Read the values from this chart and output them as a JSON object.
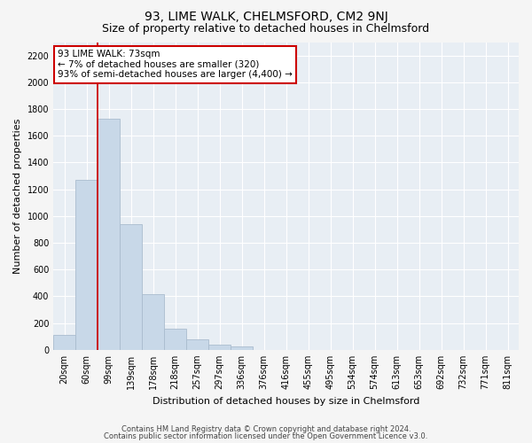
{
  "title": "93, LIME WALK, CHELMSFORD, CM2 9NJ",
  "subtitle": "Size of property relative to detached houses in Chelmsford",
  "xlabel": "Distribution of detached houses by size in Chelmsford",
  "ylabel": "Number of detached properties",
  "footnote1": "Contains HM Land Registry data © Crown copyright and database right 2024.",
  "footnote2": "Contains public sector information licensed under the Open Government Licence v3.0.",
  "bar_labels": [
    "20sqm",
    "60sqm",
    "99sqm",
    "139sqm",
    "178sqm",
    "218sqm",
    "257sqm",
    "297sqm",
    "336sqm",
    "376sqm",
    "416sqm",
    "455sqm",
    "495sqm",
    "534sqm",
    "574sqm",
    "613sqm",
    "653sqm",
    "692sqm",
    "732sqm",
    "771sqm",
    "811sqm"
  ],
  "bar_values": [
    110,
    1270,
    1730,
    940,
    415,
    155,
    75,
    38,
    25,
    0,
    0,
    0,
    0,
    0,
    0,
    0,
    0,
    0,
    0,
    0,
    0
  ],
  "bar_color": "#c8d8e8",
  "bar_edgecolor": "#aabcce",
  "ylim": [
    0,
    2300
  ],
  "yticks": [
    0,
    200,
    400,
    600,
    800,
    1000,
    1200,
    1400,
    1600,
    1800,
    2000,
    2200
  ],
  "vline_x": 1.5,
  "vline_color": "#cc0000",
  "annotation_text": "93 LIME WALK: 73sqm\n← 7% of detached houses are smaller (320)\n93% of semi-detached houses are larger (4,400) →",
  "annotation_box_color": "#ffffff",
  "annotation_box_edgecolor": "#cc0000",
  "bg_color": "#e8eef4",
  "grid_color": "#ffffff",
  "fig_bg_color": "#f5f5f5",
  "title_fontsize": 10,
  "subtitle_fontsize": 9,
  "ylabel_fontsize": 8,
  "xlabel_fontsize": 8,
  "tick_fontsize": 7,
  "annotation_fontsize": 7.5,
  "footnote_fontsize": 6
}
